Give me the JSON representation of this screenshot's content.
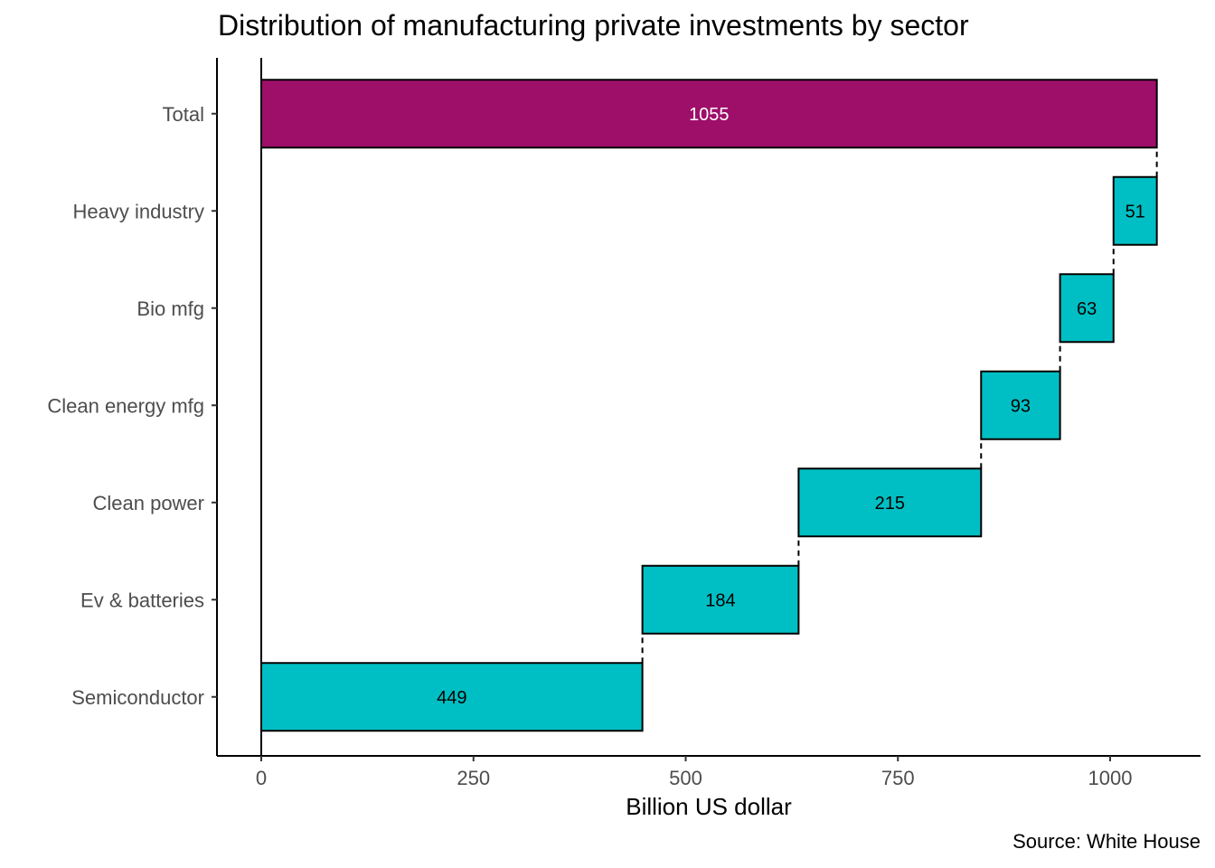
{
  "chart_data": {
    "type": "bar",
    "subtype": "waterfall-horizontal",
    "title": "Distribution of manufacturing private investments by sector",
    "xlabel": "Billion US dollar",
    "ylabel": "",
    "caption": "Source: White House",
    "xlim": [
      0,
      1100
    ],
    "xticks": [
      0,
      250,
      500,
      750,
      1000
    ],
    "categories": [
      "Total",
      "Heavy industry",
      "Bio mfg",
      "Clean energy mfg",
      "Clean power",
      "Ev & batteries",
      "Semiconductor"
    ],
    "steps": [
      {
        "label": "Semiconductor",
        "value": 449,
        "start": 0,
        "end": 449
      },
      {
        "label": "Ev & batteries",
        "value": 184,
        "start": 449,
        "end": 633
      },
      {
        "label": "Clean power",
        "value": 215,
        "start": 633,
        "end": 848
      },
      {
        "label": "Clean energy mfg",
        "value": 93,
        "start": 848,
        "end": 941
      },
      {
        "label": "Bio mfg",
        "value": 63,
        "start": 941,
        "end": 1004
      },
      {
        "label": "Heavy industry",
        "value": 51,
        "start": 1004,
        "end": 1055
      },
      {
        "label": "Total",
        "value": 1055,
        "start": 0,
        "end": 1055
      }
    ],
    "colors": {
      "step": "#00BFC4",
      "total": "#9E0F6A"
    },
    "grid": false,
    "legend": "none"
  }
}
